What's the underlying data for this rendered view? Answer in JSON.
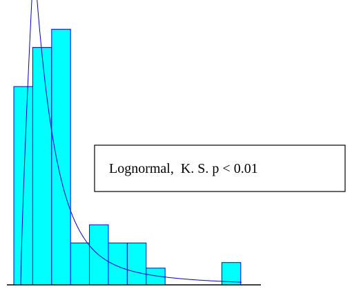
{
  "chart_data": {
    "type": "bar",
    "title": "",
    "xlabel": "",
    "ylabel": "",
    "bins": 12,
    "values": [
      28.4,
      34.0,
      36.6,
      6.0,
      8.6,
      6.0,
      6.0,
      2.4,
      0,
      0,
      0,
      3.2
    ],
    "ylim": [
      0,
      40
    ],
    "fit": {
      "name": "Lognormal",
      "label": "Lognormal,  K. S. p < 0.01"
    },
    "grid": false,
    "legend_placement": "center-right",
    "colors": {
      "bar_fill": "#00ffff",
      "bar_edge": "#0000ff",
      "curve": "#0000cc"
    }
  }
}
